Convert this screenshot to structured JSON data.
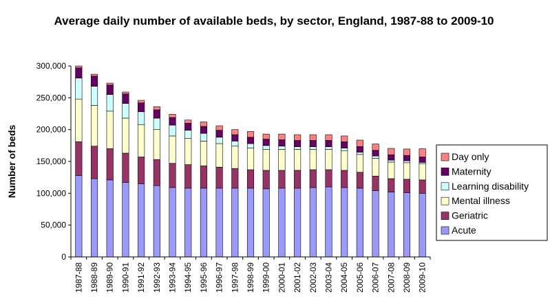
{
  "chart_data": {
    "type": "bar",
    "stacked": true,
    "title": "Average daily number of available beds, by sector, England, 1987-88 to 2009-10",
    "xlabel": "",
    "ylabel": "Number of beds",
    "ylim": [
      0,
      300000
    ],
    "yticks": [
      0,
      50000,
      100000,
      150000,
      200000,
      250000,
      300000
    ],
    "ytick_labels": [
      "0",
      "50,000",
      "100,000",
      "150,000",
      "200,000",
      "250,000",
      "300,000"
    ],
    "grid": false,
    "legend_position": "right",
    "categories": [
      "1987-88",
      "1988-89",
      "1989-90",
      "1990-91",
      "1991-92",
      "1992-93",
      "1993-94",
      "1994-95",
      "1995-96",
      "1996-97",
      "1997-98",
      "1998-99",
      "1999-00",
      "2000-01",
      "2001-02",
      "2002-03",
      "2003-04",
      "2004-05",
      "2005-06",
      "2006-07",
      "2007-08",
      "2008-09",
      "2009-10"
    ],
    "series": [
      {
        "name": "Acute",
        "color": "#9999ff",
        "values": [
          128000,
          123000,
          121000,
          117000,
          115000,
          112000,
          109000,
          108000,
          108000,
          108000,
          108000,
          108000,
          107000,
          108000,
          108000,
          109000,
          110000,
          109000,
          108000,
          104000,
          102000,
          101000,
          100000
        ]
      },
      {
        "name": "Geriatric",
        "color": "#993366",
        "values": [
          53000,
          51000,
          49000,
          46000,
          42000,
          41000,
          38000,
          37000,
          35000,
          33000,
          31000,
          29000,
          29000,
          28000,
          28000,
          28000,
          27000,
          27000,
          25000,
          23000,
          21000,
          21000,
          21000
        ]
      },
      {
        "name": "Mental illness",
        "color": "#ffffcc",
        "values": [
          67000,
          64000,
          59000,
          55000,
          51000,
          47000,
          43000,
          41000,
          39000,
          37000,
          35000,
          34000,
          33000,
          33000,
          33000,
          32000,
          32000,
          31000,
          28000,
          28000,
          26000,
          26000,
          25000
        ]
      },
      {
        "name": "Learning disability",
        "color": "#ccffff",
        "values": [
          33000,
          30000,
          26000,
          23000,
          20000,
          18000,
          17000,
          13000,
          12000,
          10000,
          8000,
          7000,
          6000,
          5000,
          4000,
          4000,
          4000,
          4000,
          3500,
          3500,
          3000,
          3000,
          2500
        ]
      },
      {
        "name": "Maternity",
        "color": "#660066",
        "values": [
          16000,
          16000,
          15000,
          15000,
          14000,
          13000,
          12000,
          11000,
          11000,
          11000,
          10000,
          10000,
          10000,
          10000,
          10000,
          10000,
          10000,
          10000,
          9000,
          9000,
          8500,
          8500,
          8500
        ]
      },
      {
        "name": "Day only",
        "color": "#ff8080",
        "values": [
          3000,
          3000,
          3000,
          3000,
          4000,
          5000,
          5000,
          5000,
          7000,
          7000,
          8000,
          9000,
          8000,
          9000,
          9000,
          9000,
          9000,
          9000,
          10000,
          10000,
          10000,
          10000,
          13000
        ]
      }
    ]
  }
}
